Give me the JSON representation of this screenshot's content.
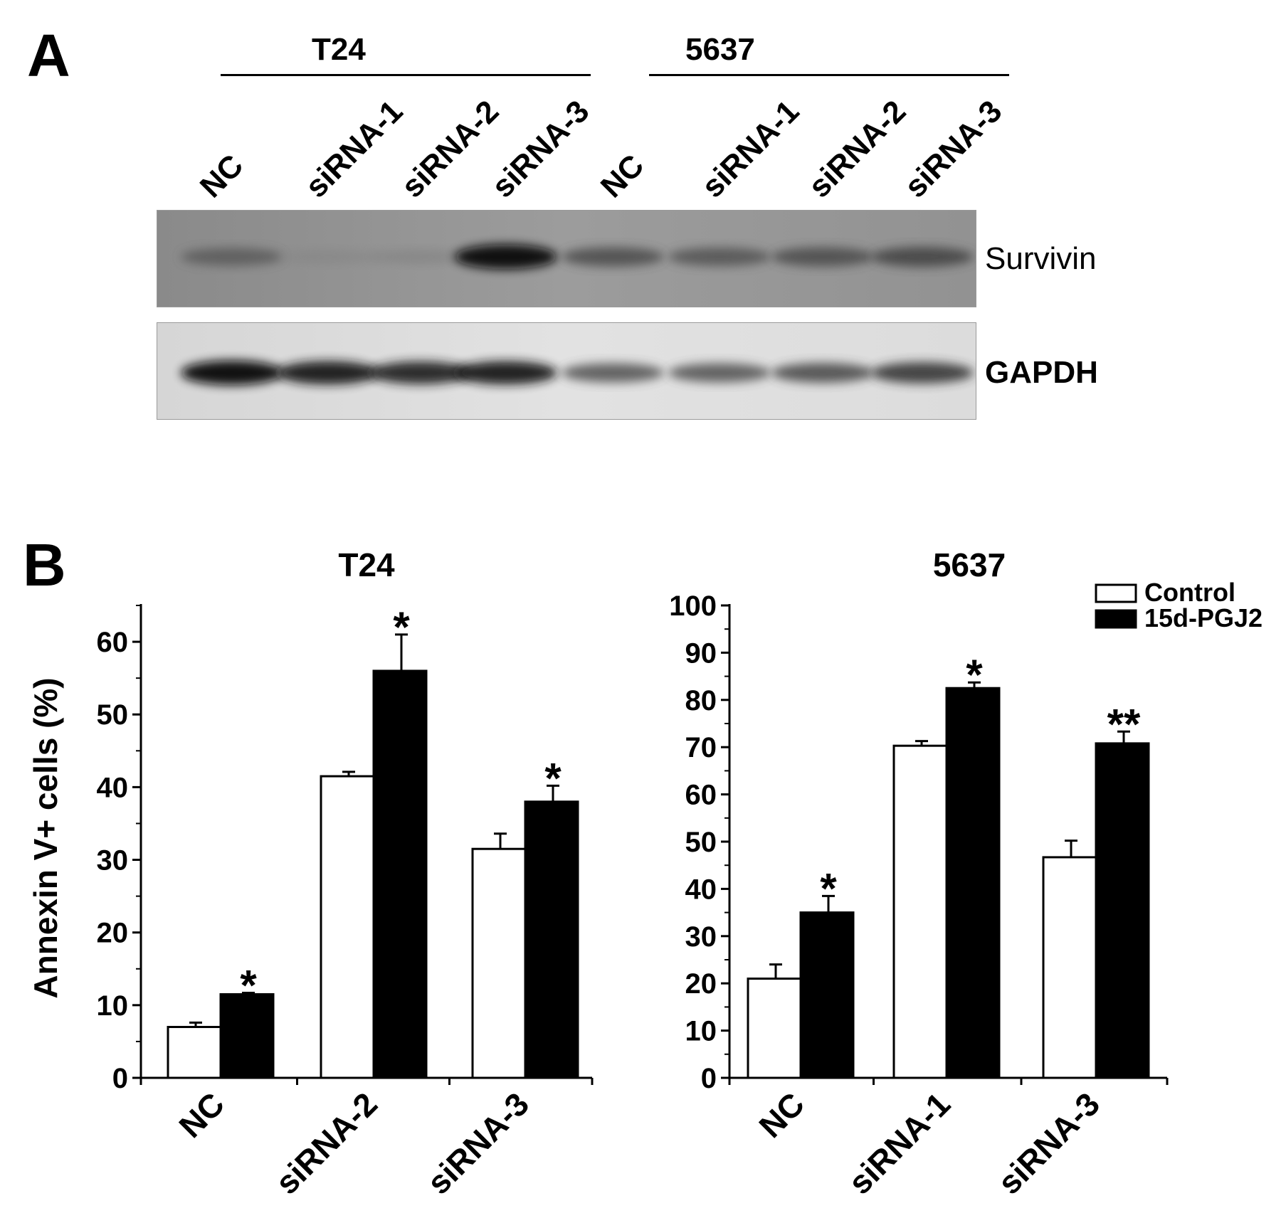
{
  "panel_a": {
    "letter": "A",
    "groups": [
      {
        "title": "T24",
        "lanes": [
          "NC",
          "siRNA-1",
          "siRNA-2",
          "siRNA-3"
        ]
      },
      {
        "title": "5637",
        "lanes": [
          "NC",
          "siRNA-1",
          "siRNA-2",
          "siRNA-3"
        ]
      }
    ],
    "bands": [
      {
        "label": "Survivin",
        "intensity": [
          0.45,
          0.12,
          0.15,
          0.95,
          0.55,
          0.5,
          0.55,
          0.6
        ]
      },
      {
        "label": "GAPDH",
        "intensity": [
          0.95,
          0.85,
          0.8,
          0.85,
          0.55,
          0.55,
          0.6,
          0.7
        ]
      }
    ]
  },
  "panel_b": {
    "letter": "B",
    "legend": [
      {
        "label": "Control",
        "fill": "#ffffff"
      },
      {
        "label": "15d-PGJ2",
        "fill": "#000000"
      }
    ]
  },
  "chart_data": [
    {
      "type": "bar",
      "title": "T24",
      "ylabel": "Annexin V+ cells (%)",
      "xlabel": "",
      "ylim": [
        0,
        65
      ],
      "yticks": [
        0,
        10,
        20,
        30,
        40,
        50,
        60
      ],
      "categories": [
        "NC",
        "siRNA-2",
        "siRNA-3"
      ],
      "series": [
        {
          "name": "Control",
          "values": [
            7.0,
            41.5,
            31.5
          ],
          "errors": [
            0.6,
            0.6,
            2.1
          ],
          "marks": [
            "",
            "",
            ""
          ]
        },
        {
          "name": "15d-PGJ2",
          "values": [
            11.5,
            56.0,
            38.0
          ],
          "errors": [
            0.2,
            5.0,
            2.2
          ],
          "marks": [
            "*",
            "*",
            "*"
          ]
        }
      ]
    },
    {
      "type": "bar",
      "title": "5637",
      "ylabel": "",
      "xlabel": "",
      "ylim": [
        0,
        100
      ],
      "yticks": [
        0,
        10,
        20,
        30,
        40,
        50,
        60,
        70,
        80,
        90,
        100
      ],
      "categories": [
        "NC",
        "siRNA-1",
        "siRNA-3"
      ],
      "series": [
        {
          "name": "Control",
          "values": [
            21.0,
            70.3,
            46.7
          ],
          "errors": [
            3.0,
            1.0,
            3.5
          ],
          "marks": [
            "",
            "",
            ""
          ]
        },
        {
          "name": "15d-PGJ2",
          "values": [
            35.0,
            82.5,
            70.8
          ],
          "errors": [
            3.5,
            1.2,
            2.5
          ],
          "marks": [
            "*",
            "*",
            "**"
          ]
        }
      ]
    }
  ]
}
